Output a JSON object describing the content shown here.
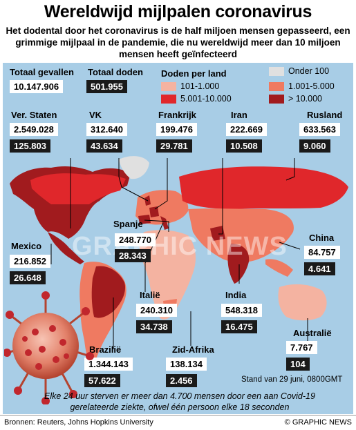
{
  "title": "Wereldwijd mijlpalen coronavirus",
  "subtitle": "Het dodental door het coronavirus is de half miljoen mensen gepasseerd, een grimmige mijlpaal in de pandemie, die nu wereldwijd meer dan 10 miljoen mensen heeft geïnfecteerd",
  "totals": {
    "cases_label": "Totaal gevallen",
    "cases_value": "10.147.906",
    "deaths_label": "Totaal doden",
    "deaths_value": "501.955"
  },
  "legend": {
    "title": "Doden per land",
    "items": [
      {
        "label": "101-1.000",
        "color": "#f4b3a1"
      },
      {
        "label": "5.001-10.000",
        "color": "#e0272b"
      },
      {
        "label": "Onder 100",
        "color": "#e0e0e0"
      },
      {
        "label": "1.001-5.000",
        "color": "#ef7a61"
      },
      {
        "label": "> 10.000",
        "color": "#a11b1e"
      }
    ]
  },
  "countries": {
    "usa": {
      "name": "Ver. Staten",
      "cases": "2.549.028",
      "deaths": "125.803"
    },
    "uk": {
      "name": "VK",
      "cases": "312.640",
      "deaths": "43.634"
    },
    "france": {
      "name": "Frankrijk",
      "cases": "199.476",
      "deaths": "29.781"
    },
    "iran": {
      "name": "Iran",
      "cases": "222.669",
      "deaths": "10.508"
    },
    "russia": {
      "name": "Rusland",
      "cases": "633.563",
      "deaths": "9.060"
    },
    "spain": {
      "name": "Spanje",
      "cases": "248.770",
      "deaths": "28.343"
    },
    "mexico": {
      "name": "Mexico",
      "cases": "216.852",
      "deaths": "26.648"
    },
    "italy": {
      "name": "Italië",
      "cases": "240.310",
      "deaths": "34.738"
    },
    "india": {
      "name": "India",
      "cases": "548.318",
      "deaths": "16.475"
    },
    "china": {
      "name": "China",
      "cases": "84.757",
      "deaths": "4.641"
    },
    "australia": {
      "name": "Australië",
      "cases": "7.767",
      "deaths": "104"
    },
    "brazil": {
      "name": "Brazilië",
      "cases": "1.344.143",
      "deaths": "57.622"
    },
    "south_africa": {
      "name": "Zid-Afrika",
      "cases": "138.134",
      "deaths": "2.456"
    }
  },
  "stand": "Stand van 29 juni, 0800GMT",
  "note": "Elke 24 uur sterven er meer dan 4.700 mensen door een aan Covid-19 gerelateerde ziekte, ofwel één persoon elke 18 seconden",
  "source": "Bronnen: Reuters, Johns Hopkins University",
  "copyright": "© GRAPHIC NEWS",
  "watermark": "GRAPHIC NEWS"
}
